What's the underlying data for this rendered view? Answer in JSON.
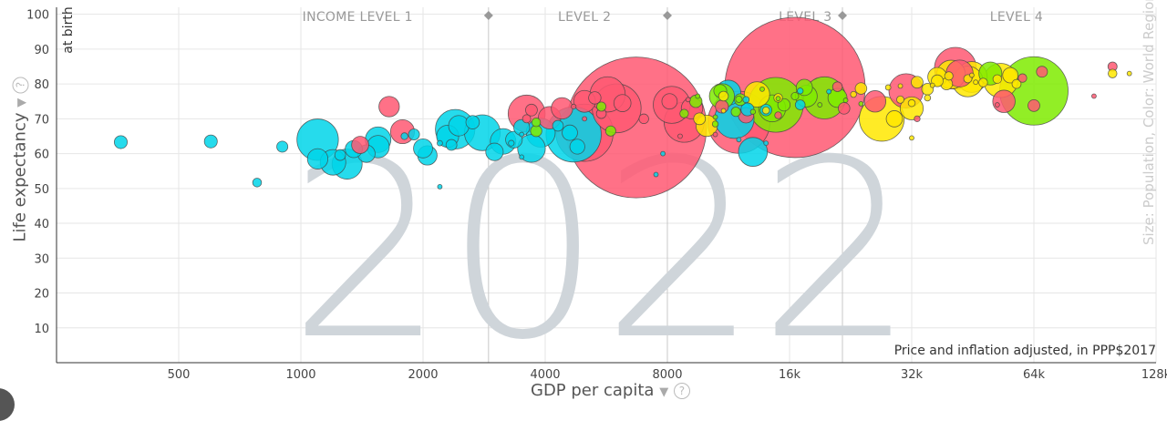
{
  "chart_data": {
    "type": "scatter",
    "xlabel": "GDP per capita",
    "ylabel": "Life expectancy",
    "ylabel_sub": "at birth",
    "year": "2022",
    "note": "Price and inflation adjusted, in PPP$2017",
    "size_color_label": "Size: Population, Color: World Regions",
    "x_scale": "log",
    "xlim": [
      250,
      128000
    ],
    "ylim": [
      0,
      102
    ],
    "x_ticks": [
      {
        "value": 500,
        "label": "500"
      },
      {
        "value": 1000,
        "label": "1000"
      },
      {
        "value": 2000,
        "label": "2000"
      },
      {
        "value": 4000,
        "label": "4000"
      },
      {
        "value": 8000,
        "label": "8000"
      },
      {
        "value": 16000,
        "label": "16k"
      },
      {
        "value": 32000,
        "label": "32k"
      },
      {
        "value": 64000,
        "label": "64k"
      },
      {
        "value": 128000,
        "label": "128k"
      }
    ],
    "y_ticks": [
      10,
      20,
      30,
      40,
      50,
      60,
      70,
      80,
      90,
      100
    ],
    "income_levels": [
      {
        "label": "INCOME LEVEL 1",
        "center": 1380
      },
      {
        "label": "LEVEL 2",
        "center": 5000
      },
      {
        "label": "LEVEL 3",
        "center": 17500
      },
      {
        "label": "LEVEL 4",
        "center": 58000
      }
    ],
    "income_dividers": [
      2900,
      8000,
      21600
    ],
    "colors": {
      "africa": "#00d5e9",
      "americas": "#7feb00",
      "asia": "#ff5872",
      "europe": "#ffe700"
    },
    "points": [
      {
        "x": 16500,
        "y": 79,
        "pop": 1410,
        "region": "asia"
      },
      {
        "x": 6700,
        "y": 67.5,
        "pop": 1420,
        "region": "asia"
      },
      {
        "x": 64000,
        "y": 78,
        "pop": 335,
        "region": "americas"
      },
      {
        "x": 12000,
        "y": 69,
        "pop": 276,
        "region": "asia"
      },
      {
        "x": 5000,
        "y": 66,
        "pop": 235,
        "region": "asia"
      },
      {
        "x": 4700,
        "y": 65.5,
        "pop": 218,
        "region": "africa"
      },
      {
        "x": 14800,
        "y": 74,
        "pop": 215,
        "region": "americas"
      },
      {
        "x": 6000,
        "y": 73,
        "pop": 171,
        "region": "asia"
      },
      {
        "x": 27000,
        "y": 70,
        "pop": 144,
        "region": "europe"
      },
      {
        "x": 1100,
        "y": 64,
        "pop": 123,
        "region": "africa"
      },
      {
        "x": 19500,
        "y": 76,
        "pop": 127,
        "region": "americas"
      },
      {
        "x": 41000,
        "y": 84.5,
        "pop": 125,
        "region": "asia"
      },
      {
        "x": 2400,
        "y": 67,
        "pop": 112,
        "region": "africa"
      },
      {
        "x": 8800,
        "y": 69,
        "pop": 115,
        "region": "asia"
      },
      {
        "x": 8200,
        "y": 74,
        "pop": 98,
        "region": "asia"
      },
      {
        "x": 11700,
        "y": 70,
        "pop": 111,
        "region": "africa"
      },
      {
        "x": 3600,
        "y": 71.5,
        "pop": 98,
        "region": "asia"
      },
      {
        "x": 2800,
        "y": 66,
        "pop": 92,
        "region": "africa"
      },
      {
        "x": 5700,
        "y": 77,
        "pop": 89,
        "region": "asia"
      },
      {
        "x": 53000,
        "y": 81,
        "pop": 84,
        "region": "europe"
      },
      {
        "x": 31000,
        "y": 78,
        "pop": 85,
        "region": "asia"
      },
      {
        "x": 45000,
        "y": 82,
        "pop": 68,
        "region": "europe"
      },
      {
        "x": 44000,
        "y": 80.7,
        "pop": 67,
        "region": "europe"
      },
      {
        "x": 40000,
        "y": 82.7,
        "pop": 59,
        "region": "europe"
      },
      {
        "x": 1300,
        "y": 57,
        "pop": 65,
        "region": "africa"
      },
      {
        "x": 3900,
        "y": 66,
        "pop": 60,
        "region": "africa"
      },
      {
        "x": 42000,
        "y": 83,
        "pop": 52,
        "region": "asia"
      },
      {
        "x": 14500,
        "y": 73,
        "pop": 52,
        "region": "americas"
      },
      {
        "x": 3700,
        "y": 61.5,
        "pop": 55,
        "region": "africa"
      },
      {
        "x": 13000,
        "y": 60.5,
        "pop": 60,
        "region": "africa"
      },
      {
        "x": 1550,
        "y": 64,
        "pop": 47,
        "region": "africa"
      },
      {
        "x": 13300,
        "y": 77,
        "pop": 46,
        "region": "europe"
      },
      {
        "x": 32000,
        "y": 73,
        "pop": 38,
        "region": "europe"
      },
      {
        "x": 11300,
        "y": 77.5,
        "pop": 45,
        "region": "africa"
      },
      {
        "x": 50000,
        "y": 83,
        "pop": 38,
        "region": "americas"
      },
      {
        "x": 1200,
        "y": 57.5,
        "pop": 47,
        "region": "africa"
      },
      {
        "x": 1780,
        "y": 66.3,
        "pop": 41,
        "region": "asia"
      },
      {
        "x": 54000,
        "y": 75,
        "pop": 36,
        "region": "asia"
      },
      {
        "x": 3150,
        "y": 63.5,
        "pop": 47,
        "region": "africa"
      },
      {
        "x": 10900,
        "y": 76.5,
        "pop": 45,
        "region": "americas"
      },
      {
        "x": 5000,
        "y": 75,
        "pop": 34,
        "region": "asia"
      },
      {
        "x": 17600,
        "y": 76.5,
        "pop": 34,
        "region": "americas"
      },
      {
        "x": 4100,
        "y": 70.3,
        "pop": 36,
        "region": "asia"
      },
      {
        "x": 1550,
        "y": 62,
        "pop": 36,
        "region": "africa"
      },
      {
        "x": 1650,
        "y": 73.5,
        "pop": 30,
        "region": "asia"
      },
      {
        "x": 2300,
        "y": 65,
        "pop": 35,
        "region": "africa"
      },
      {
        "x": 1100,
        "y": 58.5,
        "pop": 30,
        "region": "africa"
      },
      {
        "x": 10000,
        "y": 68,
        "pop": 33,
        "region": "europe"
      },
      {
        "x": 26000,
        "y": 75,
        "pop": 33,
        "region": "asia"
      },
      {
        "x": 2450,
        "y": 68,
        "pop": 30,
        "region": "africa"
      },
      {
        "x": 4400,
        "y": 73,
        "pop": 33,
        "region": "asia"
      },
      {
        "x": 9200,
        "y": 73,
        "pop": 33,
        "region": "asia"
      },
      {
        "x": 21000,
        "y": 76,
        "pop": 26,
        "region": "americas"
      },
      {
        "x": 2050,
        "y": 59.5,
        "pop": 27,
        "region": "africa"
      },
      {
        "x": 2000,
        "y": 61.5,
        "pop": 26,
        "region": "africa"
      },
      {
        "x": 3000,
        "y": 60.5,
        "pop": 22,
        "region": "africa"
      },
      {
        "x": 37000,
        "y": 82,
        "pop": 26,
        "region": "europe"
      },
      {
        "x": 1450,
        "y": 60,
        "pop": 22,
        "region": "africa"
      },
      {
        "x": 6200,
        "y": 74.5,
        "pop": 21,
        "region": "asia"
      },
      {
        "x": 1350,
        "y": 61.3,
        "pop": 21,
        "region": "africa"
      },
      {
        "x": 1400,
        "y": 62.5,
        "pop": 21,
        "region": "asia"
      },
      {
        "x": 3350,
        "y": 64,
        "pop": 20,
        "region": "africa"
      },
      {
        "x": 29000,
        "y": 70,
        "pop": 19,
        "region": "europe"
      },
      {
        "x": 17400,
        "y": 79,
        "pop": 19,
        "region": "americas"
      },
      {
        "x": 3500,
        "y": 67.5,
        "pop": 18,
        "region": "africa"
      },
      {
        "x": 64000,
        "y": 73.8,
        "pop": 10,
        "region": "asia"
      },
      {
        "x": 12500,
        "y": 71,
        "pop": 17,
        "region": "asia"
      },
      {
        "x": 4600,
        "y": 66,
        "pop": 17,
        "region": "africa"
      },
      {
        "x": 8100,
        "y": 75,
        "pop": 17,
        "region": "asia"
      },
      {
        "x": 4800,
        "y": 62,
        "pop": 16,
        "region": "africa"
      },
      {
        "x": 56000,
        "y": 82.5,
        "pop": 17,
        "region": "europe"
      },
      {
        "x": 10800,
        "y": 78,
        "pop": 12,
        "region": "americas"
      },
      {
        "x": 10900,
        "y": 73.5,
        "pop": 12,
        "region": "asia"
      },
      {
        "x": 9400,
        "y": 75,
        "pop": 11,
        "region": "americas"
      },
      {
        "x": 15500,
        "y": 74,
        "pop": 11,
        "region": "americas"
      },
      {
        "x": 5300,
        "y": 76,
        "pop": 11,
        "region": "asia"
      },
      {
        "x": 2650,
        "y": 69,
        "pop": 13,
        "region": "africa"
      },
      {
        "x": 12600,
        "y": 72.7,
        "pop": 12,
        "region": "africa"
      },
      {
        "x": 3700,
        "y": 72.5,
        "pop": 10,
        "region": "asia"
      },
      {
        "x": 39000,
        "y": 80,
        "pop": 10,
        "region": "europe"
      },
      {
        "x": 33000,
        "y": 80.5,
        "pop": 10,
        "region": "europe"
      },
      {
        "x": 37000,
        "y": 80.9,
        "pop": 10,
        "region": "europe"
      },
      {
        "x": 67000,
        "y": 83.5,
        "pop": 8.7,
        "region": "asia"
      },
      {
        "x": 35000,
        "y": 78.5,
        "pop": 9.7,
        "region": "europe"
      },
      {
        "x": 24000,
        "y": 78.7,
        "pop": 9.6,
        "region": "europe"
      },
      {
        "x": 5500,
        "y": 71.5,
        "pop": 7,
        "region": "asia"
      },
      {
        "x": 9600,
        "y": 70,
        "pop": 10,
        "region": "europe"
      },
      {
        "x": 12100,
        "y": 75.5,
        "pop": 10,
        "region": "americas"
      },
      {
        "x": 21800,
        "y": 73,
        "pop": 9.7,
        "region": "asia"
      },
      {
        "x": 3800,
        "y": 66.5,
        "pop": 9.2,
        "region": "americas"
      },
      {
        "x": 11000,
        "y": 76.5,
        "pop": 6.8,
        "region": "europe"
      },
      {
        "x": 14000,
        "y": 72.5,
        "pop": 9.5,
        "region": "africa"
      },
      {
        "x": 2350,
        "y": 62.5,
        "pop": 8.5,
        "region": "africa"
      },
      {
        "x": 900,
        "y": 62,
        "pop": 8.8,
        "region": "africa"
      },
      {
        "x": 1250,
        "y": 59.6,
        "pop": 8.4,
        "region": "africa"
      },
      {
        "x": 1900,
        "y": 65.5,
        "pop": 8.7,
        "region": "africa"
      },
      {
        "x": 4300,
        "y": 68,
        "pop": 8.4,
        "region": "africa"
      },
      {
        "x": 58000,
        "y": 80,
        "pop": 5.9,
        "region": "europe"
      },
      {
        "x": 48000,
        "y": 80.4,
        "pop": 5.5,
        "region": "europe"
      },
      {
        "x": 52000,
        "y": 81.4,
        "pop": 5.4,
        "region": "europe"
      },
      {
        "x": 15000,
        "y": 76,
        "pop": 5.4,
        "region": "europe"
      },
      {
        "x": 7000,
        "y": 70,
        "pop": 6.7,
        "region": "asia"
      },
      {
        "x": 21000,
        "y": 79.2,
        "pop": 6.8,
        "region": "asia"
      },
      {
        "x": 100000,
        "y": 85,
        "pop": 6,
        "region": "asia"
      },
      {
        "x": 100000,
        "y": 83,
        "pop": 5.5,
        "region": "europe"
      },
      {
        "x": 5800,
        "y": 66.5,
        "pop": 7.5,
        "region": "americas"
      },
      {
        "x": 5500,
        "y": 73.5,
        "pop": 6.1,
        "region": "americas"
      },
      {
        "x": 17000,
        "y": 74,
        "pop": 7,
        "region": "africa"
      },
      {
        "x": 11800,
        "y": 72,
        "pop": 6.4,
        "region": "americas"
      },
      {
        "x": 8800,
        "y": 71.5,
        "pop": 5.3,
        "region": "americas"
      },
      {
        "x": 3600,
        "y": 70,
        "pop": 4.9,
        "region": "asia"
      },
      {
        "x": 3800,
        "y": 69,
        "pop": 5.5,
        "region": "americas"
      },
      {
        "x": 780,
        "y": 51.7,
        "pop": 5.6,
        "region": "africa"
      },
      {
        "x": 360,
        "y": 63.3,
        "pop": 12,
        "region": "africa"
      },
      {
        "x": 600,
        "y": 63.5,
        "pop": 12,
        "region": "africa"
      },
      {
        "x": 2200,
        "y": 50.5,
        "pop": 1.3,
        "region": "africa"
      },
      {
        "x": 44000,
        "y": 81.5,
        "pop": 4.9,
        "region": "europe"
      },
      {
        "x": 39500,
        "y": 82.3,
        "pop": 5.1,
        "region": "europe"
      },
      {
        "x": 16500,
        "y": 76.5,
        "pop": 4,
        "region": "americas"
      },
      {
        "x": 60000,
        "y": 81.7,
        "pop": 5.2,
        "region": "asia"
      },
      {
        "x": 14000,
        "y": 72.4,
        "pop": 3.6,
        "region": "europe"
      },
      {
        "x": 30000,
        "y": 75.5,
        "pop": 3.9,
        "region": "europe"
      },
      {
        "x": 1800,
        "y": 65,
        "pop": 3.4,
        "region": "africa"
      },
      {
        "x": 32000,
        "y": 74.5,
        "pop": 3.5,
        "region": "europe"
      },
      {
        "x": 15000,
        "y": 71,
        "pop": 3.4,
        "region": "asia"
      },
      {
        "x": 12000,
        "y": 75.6,
        "pop": 3,
        "region": "americas"
      },
      {
        "x": 35000,
        "y": 76,
        "pop": 2.8,
        "region": "europe"
      },
      {
        "x": 33000,
        "y": 70,
        "pop": 2.5,
        "region": "asia"
      },
      {
        "x": 3300,
        "y": 63,
        "pop": 2.4,
        "region": "africa"
      },
      {
        "x": 23000,
        "y": 77,
        "pop": 2.6,
        "region": "europe"
      },
      {
        "x": 28000,
        "y": 79,
        "pop": 2.1,
        "region": "europe"
      },
      {
        "x": 12500,
        "y": 75.5,
        "pop": 2.8,
        "region": "africa"
      },
      {
        "x": 10500,
        "y": 68.5,
        "pop": 2.6,
        "region": "americas"
      },
      {
        "x": 2200,
        "y": 63,
        "pop": 2.1,
        "region": "africa"
      },
      {
        "x": 17000,
        "y": 78,
        "pop": 2.5,
        "region": "africa"
      },
      {
        "x": 4700,
        "y": 73.5,
        "pop": 1.7,
        "region": "asia"
      },
      {
        "x": 36000,
        "y": 79.6,
        "pop": 1.3,
        "region": "europe"
      },
      {
        "x": 13000,
        "y": 72,
        "pop": 1.8,
        "region": "americas"
      },
      {
        "x": 22000,
        "y": 75.3,
        "pop": 1.5,
        "region": "americas"
      },
      {
        "x": 15000,
        "y": 75.8,
        "pop": 1.2,
        "region": "americas"
      },
      {
        "x": 3500,
        "y": 65.5,
        "pop": 1.2,
        "region": "africa"
      },
      {
        "x": 11000,
        "y": 72.3,
        "pop": 1.4,
        "region": "europe"
      },
      {
        "x": 20000,
        "y": 77.8,
        "pop": 1.5,
        "region": "africa"
      },
      {
        "x": 24000,
        "y": 74.3,
        "pop": 1.1,
        "region": "americas"
      },
      {
        "x": 7500,
        "y": 54,
        "pop": 0.6,
        "region": "africa"
      },
      {
        "x": 12000,
        "y": 64,
        "pop": 0.8,
        "region": "africa"
      },
      {
        "x": 10500,
        "y": 65.5,
        "pop": 0.9,
        "region": "asia"
      },
      {
        "x": 7800,
        "y": 60,
        "pop": 0.9,
        "region": "africa"
      },
      {
        "x": 14000,
        "y": 63,
        "pop": 0.7,
        "region": "africa"
      },
      {
        "x": 32000,
        "y": 64.5,
        "pop": 0.6,
        "region": "europe"
      },
      {
        "x": 8600,
        "y": 65,
        "pop": 0.7,
        "region": "asia"
      },
      {
        "x": 3500,
        "y": 59,
        "pop": 0.5,
        "region": "africa"
      },
      {
        "x": 9000,
        "y": 75.5,
        "pop": 0.6,
        "region": "asia"
      },
      {
        "x": 46000,
        "y": 80.5,
        "pop": 0.6,
        "region": "europe"
      },
      {
        "x": 52000,
        "y": 74,
        "pop": 0.4,
        "region": "asia"
      },
      {
        "x": 110000,
        "y": 83,
        "pop": 0.7,
        "region": "europe"
      },
      {
        "x": 90000,
        "y": 76.5,
        "pop": 0.6,
        "region": "asia"
      },
      {
        "x": 45000,
        "y": 82.5,
        "pop": 0.4,
        "region": "europe"
      },
      {
        "x": 30000,
        "y": 79.4,
        "pop": 0.5,
        "region": "europe"
      },
      {
        "x": 13700,
        "y": 78.5,
        "pop": 0.5,
        "region": "americas"
      },
      {
        "x": 19000,
        "y": 74,
        "pop": 0.4,
        "region": "americas"
      },
      {
        "x": 9500,
        "y": 76.5,
        "pop": 0.4,
        "region": "americas"
      },
      {
        "x": 5000,
        "y": 70,
        "pop": 0.8,
        "region": "asia"
      },
      {
        "x": 10500,
        "y": 70.5,
        "pop": 0.5,
        "region": "americas"
      }
    ]
  }
}
